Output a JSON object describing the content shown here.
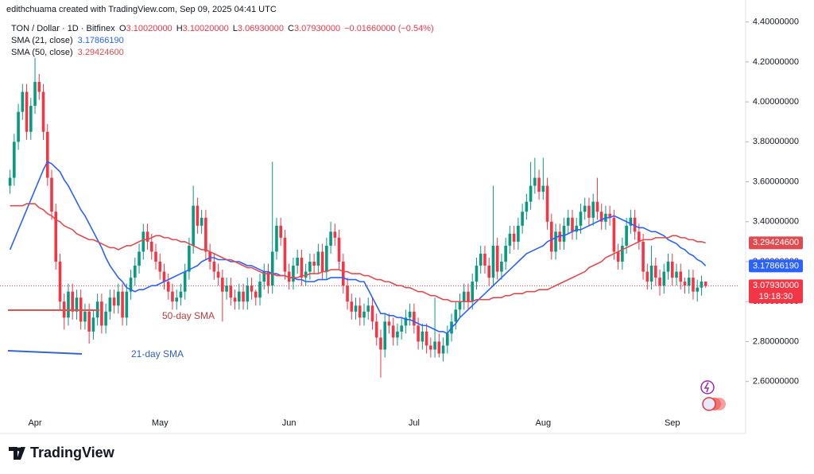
{
  "chart_data": {
    "type": "candlestick",
    "header": {
      "credit": "edithchuama created with TradingView.com, Sep 09, 2025 04:41 UTC",
      "symbol": "TON / Dollar · 1D · Bitfinex",
      "quote": [
        [
          "O",
          "3.10020000"
        ],
        [
          "H",
          "3.10020000"
        ],
        [
          "L",
          "3.06930000"
        ],
        [
          "C",
          "3.07930000"
        ]
      ],
      "change": "−0.01660000 (−0.54%)"
    },
    "categories": [
      null,
      null,
      null,
      null,
      null,
      null,
      "Apr",
      null,
      null,
      null,
      null,
      null,
      null,
      null,
      null,
      null,
      null,
      null,
      null,
      null,
      null,
      null,
      null,
      null,
      null,
      null,
      null,
      null,
      null,
      null,
      null,
      null,
      null,
      null,
      null,
      null,
      "May",
      null,
      null,
      null,
      null,
      null,
      null,
      null,
      null,
      null,
      null,
      null,
      null,
      null,
      null,
      null,
      null,
      null,
      null,
      null,
      null,
      null,
      null,
      null,
      null,
      null,
      null,
      null,
      null,
      null,
      null,
      "Jun",
      null,
      null,
      null,
      null,
      null,
      null,
      null,
      null,
      null,
      null,
      null,
      null,
      null,
      null,
      null,
      null,
      null,
      null,
      null,
      null,
      null,
      null,
      null,
      null,
      null,
      null,
      null,
      null,
      null,
      "Jul",
      null,
      null,
      null,
      null,
      null,
      null,
      null,
      null,
      null,
      null,
      null,
      null,
      null,
      null,
      null,
      null,
      null,
      null,
      null,
      null,
      null,
      null,
      null,
      null,
      null,
      null,
      null,
      null,
      null,
      null,
      "Aug",
      null,
      null,
      null,
      null,
      null,
      null,
      null,
      null,
      null,
      null,
      null,
      null,
      null,
      null,
      null,
      null,
      null,
      null,
      null,
      null,
      null,
      null,
      null,
      null,
      null,
      null,
      null,
      null,
      null,
      null,
      "Sep",
      null,
      null,
      null,
      null,
      null,
      null,
      null,
      null
    ],
    "open": [
      3.58,
      3.62,
      3.8,
      3.95,
      4.05,
      3.85,
      3.98,
      4.1,
      4.05,
      3.85,
      3.62,
      3.45,
      3.2,
      3.0,
      2.92,
      3.05,
      2.95,
      3.02,
      2.9,
      2.95,
      2.85,
      2.92,
      3.0,
      2.88,
      2.95,
      3.02,
      2.98,
      3.05,
      2.92,
      3.05,
      3.12,
      3.18,
      3.25,
      3.35,
      3.3,
      3.25,
      3.2,
      3.15,
      3.1,
      3.05,
      3.0,
      3.02,
      3.05,
      3.15,
      3.28,
      3.48,
      3.38,
      3.42,
      3.25,
      3.2,
      3.15,
      3.12,
      3.05,
      3.08,
      3.02,
      3.0,
      3.05,
      3.0,
      3.08,
      3.05,
      3.02,
      3.1,
      3.15,
      3.08,
      3.25,
      3.38,
      3.32,
      3.15,
      3.1,
      3.18,
      3.22,
      3.12,
      3.15,
      3.2,
      3.18,
      3.25,
      3.15,
      3.28,
      3.35,
      3.32,
      3.2,
      3.08,
      3.0,
      2.95,
      2.98,
      2.92,
      2.95,
      2.98,
      2.9,
      2.82,
      2.76,
      2.9,
      2.88,
      2.82,
      2.85,
      2.88,
      2.92,
      2.95,
      2.88,
      2.8,
      2.85,
      2.78,
      2.76,
      2.8,
      2.74,
      2.78,
      2.84,
      2.9,
      2.96,
      3.0,
      3.05,
      3.0,
      3.1,
      3.18,
      3.24,
      3.18,
      3.12,
      3.28,
      3.15,
      3.2,
      3.28,
      3.34,
      3.3,
      3.38,
      3.45,
      3.5,
      3.58,
      3.62,
      3.55,
      3.58,
      3.4,
      3.25,
      3.35,
      3.3,
      3.38,
      3.42,
      3.35,
      3.38,
      3.45,
      3.48,
      3.42,
      3.5,
      3.45,
      3.4,
      3.44,
      3.42,
      3.25,
      3.2,
      3.28,
      3.38,
      3.42,
      3.35,
      3.3,
      3.15,
      3.1,
      3.18,
      3.12,
      3.08,
      3.15,
      3.2,
      3.12,
      3.15,
      3.1,
      3.08,
      3.12,
      3.05,
      3.07,
      3.1002
    ],
    "high": [
      3.66,
      3.84,
      3.99,
      4.09,
      4.09,
      4.02,
      4.22,
      4.14,
      4.09,
      3.89,
      3.66,
      3.49,
      3.24,
      3.04,
      3.09,
      3.09,
      3.06,
      3.06,
      2.99,
      2.99,
      2.96,
      3.04,
      3.04,
      2.99,
      3.06,
      3.06,
      3.09,
      3.09,
      3.09,
      3.16,
      3.22,
      3.29,
      3.39,
      3.39,
      3.34,
      3.29,
      3.24,
      3.19,
      3.14,
      3.09,
      3.06,
      3.09,
      3.19,
      3.32,
      3.58,
      3.52,
      3.46,
      3.46,
      3.29,
      3.24,
      3.19,
      3.16,
      3.12,
      3.12,
      3.06,
      3.09,
      3.09,
      3.12,
      3.12,
      3.06,
      3.14,
      3.19,
      3.19,
      3.7,
      3.42,
      3.42,
      3.36,
      3.19,
      3.22,
      3.26,
      3.26,
      3.19,
      3.24,
      3.24,
      3.29,
      3.29,
      3.32,
      3.4,
      3.39,
      3.36,
      3.24,
      3.12,
      3.04,
      3.02,
      3.02,
      2.99,
      3.02,
      3.02,
      2.94,
      2.86,
      2.94,
      2.94,
      2.92,
      2.89,
      2.92,
      2.96,
      2.99,
      2.99,
      2.92,
      2.89,
      2.89,
      2.82,
      3.02,
      2.84,
      2.82,
      2.88,
      2.94,
      3.0,
      3.04,
      3.09,
      3.09,
      3.14,
      3.22,
      3.28,
      3.28,
      3.22,
      3.58,
      3.32,
      3.24,
      3.32,
      3.38,
      3.38,
      3.42,
      3.49,
      3.54,
      3.7,
      3.72,
      3.66,
      3.72,
      3.62,
      3.44,
      3.39,
      3.39,
      3.42,
      3.46,
      3.46,
      3.42,
      3.49,
      3.52,
      3.52,
      3.54,
      3.62,
      3.49,
      3.48,
      3.48,
      3.46,
      3.29,
      3.32,
      3.42,
      3.46,
      3.46,
      3.39,
      3.34,
      3.19,
      3.28,
      3.22,
      3.16,
      3.19,
      3.24,
      3.24,
      3.19,
      3.19,
      3.12,
      3.16,
      3.16,
      3.11,
      3.13,
      3.1002
    ],
    "low": [
      3.54,
      3.58,
      3.76,
      3.91,
      3.81,
      3.81,
      3.94,
      4.01,
      3.81,
      3.58,
      3.41,
      3.16,
      2.96,
      2.86,
      2.88,
      2.91,
      2.91,
      2.86,
      2.86,
      2.79,
      2.81,
      2.88,
      2.84,
      2.84,
      2.91,
      2.94,
      2.94,
      2.88,
      2.88,
      3.01,
      3.08,
      3.14,
      3.21,
      3.26,
      3.21,
      3.16,
      3.11,
      3.06,
      3.01,
      2.96,
      2.96,
      2.98,
      3.01,
      3.11,
      3.24,
      3.34,
      3.34,
      3.21,
      3.16,
      3.11,
      3.08,
      2.9,
      3.01,
      2.98,
      2.96,
      2.96,
      2.96,
      2.96,
      3.01,
      2.98,
      2.98,
      3.06,
      3.04,
      3.04,
      3.21,
      3.28,
      3.11,
      3.06,
      3.06,
      3.14,
      3.08,
      3.08,
      3.11,
      3.14,
      3.14,
      3.11,
      3.11,
      3.24,
      3.28,
      3.16,
      3.04,
      2.96,
      2.91,
      2.91,
      2.88,
      2.88,
      2.91,
      2.86,
      2.78,
      2.62,
      2.72,
      2.84,
      2.78,
      2.78,
      2.81,
      2.84,
      2.88,
      2.84,
      2.76,
      2.76,
      2.74,
      2.72,
      2.72,
      2.72,
      2.7,
      2.74,
      2.8,
      2.86,
      2.92,
      2.96,
      2.96,
      2.96,
      3.06,
      3.14,
      3.14,
      3.08,
      3.08,
      3.11,
      3.11,
      3.16,
      3.24,
      3.26,
      3.26,
      3.34,
      3.41,
      3.46,
      3.54,
      3.51,
      3.51,
      3.36,
      3.21,
      3.21,
      3.26,
      3.26,
      3.34,
      3.31,
      3.31,
      3.34,
      3.41,
      3.38,
      3.38,
      3.41,
      3.36,
      3.36,
      3.38,
      3.21,
      3.16,
      3.16,
      3.24,
      3.34,
      3.31,
      3.26,
      3.11,
      3.06,
      3.06,
      3.08,
      3.03,
      3.04,
      3.11,
      3.08,
      3.08,
      3.06,
      3.04,
      3.04,
      3.01,
      3.0,
      3.03,
      3.0693
    ],
    "close": [
      3.62,
      3.8,
      3.95,
      4.05,
      3.85,
      3.98,
      4.1,
      4.05,
      3.85,
      3.62,
      3.45,
      3.2,
      3.0,
      2.92,
      3.05,
      2.95,
      3.02,
      2.9,
      2.95,
      2.85,
      2.92,
      3.0,
      2.88,
      2.95,
      3.02,
      2.98,
      3.05,
      2.92,
      3.05,
      3.12,
      3.18,
      3.25,
      3.35,
      3.3,
      3.25,
      3.2,
      3.15,
      3.1,
      3.05,
      3.0,
      3.02,
      3.05,
      3.15,
      3.28,
      3.48,
      3.38,
      3.42,
      3.25,
      3.2,
      3.15,
      3.12,
      3.05,
      3.08,
      3.02,
      3.0,
      3.05,
      3.0,
      3.08,
      3.05,
      3.02,
      3.1,
      3.15,
      3.08,
      3.25,
      3.38,
      3.32,
      3.15,
      3.1,
      3.18,
      3.22,
      3.12,
      3.15,
      3.2,
      3.18,
      3.25,
      3.15,
      3.28,
      3.35,
      3.32,
      3.2,
      3.08,
      3.0,
      2.95,
      2.98,
      2.92,
      2.95,
      2.98,
      2.9,
      2.82,
      2.76,
      2.9,
      2.88,
      2.82,
      2.85,
      2.88,
      2.92,
      2.95,
      2.88,
      2.8,
      2.85,
      2.78,
      2.76,
      2.8,
      2.74,
      2.78,
      2.84,
      2.9,
      2.96,
      3.0,
      3.05,
      3.0,
      3.1,
      3.18,
      3.24,
      3.18,
      3.12,
      3.28,
      3.15,
      3.2,
      3.28,
      3.34,
      3.3,
      3.38,
      3.45,
      3.5,
      3.58,
      3.62,
      3.55,
      3.58,
      3.4,
      3.25,
      3.35,
      3.3,
      3.38,
      3.42,
      3.35,
      3.38,
      3.45,
      3.48,
      3.42,
      3.5,
      3.45,
      3.4,
      3.44,
      3.42,
      3.25,
      3.2,
      3.28,
      3.38,
      3.42,
      3.35,
      3.3,
      3.15,
      3.1,
      3.18,
      3.12,
      3.08,
      3.15,
      3.2,
      3.12,
      3.15,
      3.1,
      3.08,
      3.12,
      3.05,
      3.07,
      3.1002,
      3.0793
    ],
    "last_label": "3.07930000",
    "countdown": "19:18:30",
    "up_color": "#089981",
    "down_color": "#f23645",
    "sma": [
      {
        "name": "SMA (21, close)",
        "color": "#2962ff",
        "last_label": "3.17866190",
        "values": [
          3.26,
          3.31,
          3.36,
          3.41,
          3.46,
          3.51,
          3.56,
          3.61,
          3.66,
          3.7,
          3.69,
          3.67,
          3.65,
          3.61,
          3.58,
          3.54,
          3.5,
          3.46,
          3.43,
          3.39,
          3.35,
          3.31,
          3.27,
          3.22,
          3.18,
          3.15,
          3.12,
          3.1,
          3.07,
          3.06,
          3.05,
          3.06,
          3.06,
          3.07,
          3.08,
          3.08,
          3.09,
          3.1,
          3.11,
          3.12,
          3.13,
          3.14,
          3.15,
          3.16,
          3.17,
          3.18,
          3.2,
          3.21,
          3.22,
          3.22,
          3.21,
          3.21,
          3.21,
          3.2,
          3.2,
          3.2,
          3.19,
          3.18,
          3.18,
          3.17,
          3.16,
          3.15,
          3.15,
          3.14,
          3.14,
          3.13,
          3.13,
          3.12,
          3.12,
          3.11,
          3.11,
          3.1,
          3.1,
          3.1,
          3.11,
          3.11,
          3.11,
          3.12,
          3.12,
          3.12,
          3.12,
          3.11,
          3.11,
          3.11,
          3.1,
          3.1,
          3.06,
          3.02,
          2.98,
          2.94,
          2.94,
          2.93,
          2.93,
          2.92,
          2.92,
          2.91,
          2.91,
          2.9,
          2.89,
          2.88,
          2.88,
          2.87,
          2.86,
          2.85,
          2.85,
          2.84,
          2.87,
          2.89,
          2.92,
          2.94,
          2.96,
          2.98,
          3.0,
          3.02,
          3.04,
          3.06,
          3.08,
          3.1,
          3.12,
          3.14,
          3.16,
          3.18,
          3.2,
          3.22,
          3.24,
          3.25,
          3.26,
          3.27,
          3.28,
          3.3,
          3.31,
          3.32,
          3.33,
          3.33,
          3.34,
          3.35,
          3.36,
          3.36,
          3.37,
          3.38,
          3.39,
          3.4,
          3.41,
          3.42,
          3.42,
          3.43,
          3.42,
          3.41,
          3.4,
          3.39,
          3.38,
          3.37,
          3.37,
          3.36,
          3.35,
          3.35,
          3.34,
          3.33,
          3.31,
          3.3,
          3.29,
          3.27,
          3.26,
          3.24,
          3.23,
          3.21,
          3.2,
          3.1786619
        ]
      },
      {
        "name": "SMA (50, close)",
        "color": "#e04b4f",
        "last_label": "3.29424600",
        "values": [
          3.48,
          3.48,
          3.48,
          3.48,
          3.49,
          3.49,
          3.49,
          3.47,
          3.46,
          3.44,
          3.43,
          3.41,
          3.4,
          3.38,
          3.37,
          3.36,
          3.34,
          3.33,
          3.32,
          3.31,
          3.31,
          3.3,
          3.29,
          3.28,
          3.27,
          3.27,
          3.26,
          3.27,
          3.28,
          3.28,
          3.29,
          3.3,
          3.31,
          3.31,
          3.32,
          3.33,
          3.33,
          3.32,
          3.32,
          3.31,
          3.31,
          3.3,
          3.3,
          3.29,
          3.28,
          3.27,
          3.26,
          3.26,
          3.25,
          3.24,
          3.23,
          3.22,
          3.21,
          3.21,
          3.2,
          3.19,
          3.18,
          3.17,
          3.17,
          3.16,
          3.15,
          3.14,
          3.14,
          3.14,
          3.13,
          3.13,
          3.13,
          3.12,
          3.12,
          3.12,
          3.13,
          3.13,
          3.14,
          3.14,
          3.14,
          3.15,
          3.15,
          3.16,
          3.16,
          3.16,
          3.15,
          3.15,
          3.14,
          3.14,
          3.14,
          3.13,
          3.13,
          3.12,
          3.11,
          3.11,
          3.1,
          3.1,
          3.09,
          3.08,
          3.08,
          3.07,
          3.07,
          3.06,
          3.05,
          3.05,
          3.04,
          3.03,
          3.03,
          3.02,
          3.01,
          3.01,
          3.0,
          3.0,
          3.0,
          3.0,
          3.0,
          3.0,
          3.01,
          3.01,
          3.01,
          3.01,
          3.02,
          3.02,
          3.02,
          3.03,
          3.03,
          3.04,
          3.04,
          3.04,
          3.05,
          3.05,
          3.05,
          3.06,
          3.06,
          3.06,
          3.07,
          3.08,
          3.09,
          3.1,
          3.11,
          3.12,
          3.13,
          3.14,
          3.15,
          3.17,
          3.18,
          3.19,
          3.2,
          3.22,
          3.23,
          3.24,
          3.25,
          3.26,
          3.27,
          3.28,
          3.29,
          3.3,
          3.31,
          3.31,
          3.31,
          3.32,
          3.32,
          3.32,
          3.32,
          3.33,
          3.33,
          3.32,
          3.32,
          3.31,
          3.31,
          3.3,
          3.3,
          3.294246
        ]
      }
    ],
    "annotations": [
      {
        "text": "50-day SMA",
        "color": "#c0393d"
      },
      {
        "text": "21-day SMA",
        "color": "#2f5fc4"
      }
    ],
    "logo": "TradingView",
    "ylim": [
      2.34,
      4.51
    ],
    "yticks": [
      {
        "value": 2.6,
        "label": "2.60000000"
      },
      {
        "value": 2.8,
        "label": "2.80000000"
      },
      {
        "value": 3.0,
        "label": "3.00000000"
      },
      {
        "value": 3.2,
        "label": "3.20000000"
      },
      {
        "value": 3.4,
        "label": "3.40000000"
      },
      {
        "value": 3.6,
        "label": "3.60000000"
      },
      {
        "value": 3.8,
        "label": "3.80000000"
      },
      {
        "value": 4.0,
        "label": "4.00000000"
      },
      {
        "value": 4.2,
        "label": "4.20000000"
      },
      {
        "value": 4.4,
        "label": "4.40000000"
      }
    ],
    "grid": false
  }
}
